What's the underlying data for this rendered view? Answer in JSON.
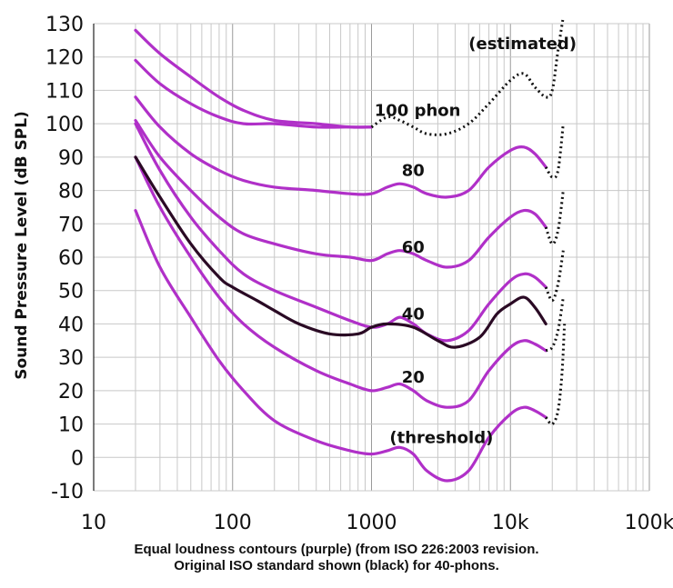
{
  "chart_data": {
    "type": "line",
    "x_scale": "log",
    "xlim": [
      10,
      100000
    ],
    "ylim": [
      -10,
      130
    ],
    "ylabel": "Sound Pressure Level (dB SPL)",
    "x_ticks": [
      10,
      100,
      1000,
      10000,
      100000
    ],
    "x_tick_labels": [
      "10",
      "100",
      "1000",
      "10k",
      "100k"
    ],
    "y_ticks": [
      -10,
      0,
      10,
      20,
      30,
      40,
      50,
      60,
      70,
      80,
      90,
      100,
      110,
      120,
      130
    ],
    "y_tick_labels": [
      "-10",
      "0",
      "10",
      "20",
      "30",
      "40",
      "50",
      "60",
      "70",
      "80",
      "90",
      "100",
      "110",
      "120",
      "130"
    ],
    "grid": true,
    "colors": {
      "purple": "#b030c8",
      "black": "#2a0a24",
      "dotted": "#111111",
      "grid": "#c8c8c8"
    },
    "series": [
      {
        "style": "purple",
        "x": [
          20,
          30,
          50,
          80,
          120,
          200,
          400,
          700,
          1000,
          1300,
          1600,
          2000,
          2500,
          3500,
          5000,
          7000,
          10000,
          12500,
          15000,
          18000
        ],
        "y": [
          74,
          57,
          42,
          29,
          20,
          11,
          5,
          2,
          1,
          2,
          3,
          1,
          -4,
          -7,
          -4,
          6,
          13,
          15,
          14,
          12
        ]
      },
      {
        "style": "purple",
        "x": [
          20,
          30,
          50,
          80,
          120,
          200,
          400,
          700,
          1000,
          1300,
          1600,
          2000,
          2500,
          3500,
          5000,
          7000,
          10000,
          12500,
          15000,
          18000
        ],
        "y": [
          90,
          75,
          60,
          48,
          40,
          33,
          26,
          22,
          20,
          21,
          22,
          20,
          17,
          15,
          17,
          26,
          33,
          35,
          34,
          32
        ]
      },
      {
        "style": "purple",
        "x": [
          20,
          30,
          50,
          80,
          120,
          200,
          400,
          700,
          1000,
          1300,
          1600,
          2000,
          2500,
          3500,
          5000,
          7000,
          10000,
          12500,
          15000,
          18000
        ],
        "y": [
          100,
          86,
          72,
          62,
          55,
          50,
          45,
          41,
          39,
          40,
          42,
          40,
          37,
          35,
          38,
          46,
          53,
          55,
          54,
          51
        ]
      },
      {
        "style": "purple",
        "x": [
          20,
          30,
          50,
          80,
          120,
          200,
          400,
          700,
          1000,
          1300,
          1600,
          2000,
          2500,
          3500,
          5000,
          7000,
          10000,
          12500,
          15000,
          18000
        ],
        "y": [
          101,
          90,
          80,
          72,
          67,
          64,
          61,
          60,
          59,
          61,
          62,
          61,
          59,
          57,
          59,
          66,
          72,
          74,
          73,
          69
        ]
      },
      {
        "style": "purple",
        "x": [
          20,
          30,
          50,
          80,
          120,
          200,
          400,
          700,
          1000,
          1300,
          1600,
          2000,
          2500,
          3500,
          5000,
          7000,
          10000,
          12500,
          15000,
          18000
        ],
        "y": [
          108,
          99,
          91,
          86,
          83,
          81,
          80,
          79,
          79,
          81,
          82,
          81,
          79,
          78,
          80,
          87,
          92,
          93,
          91,
          87
        ]
      },
      {
        "style": "purple",
        "x": [
          20,
          30,
          50,
          80,
          120,
          200,
          400,
          700,
          1000
        ],
        "y": [
          119,
          112,
          106,
          102,
          100,
          100,
          99,
          99,
          99
        ]
      },
      {
        "style": "purple",
        "x": [
          20,
          30,
          50,
          80,
          120,
          200,
          400,
          700,
          1000
        ],
        "y": [
          128,
          121,
          114,
          108,
          104,
          101,
          100,
          99,
          99
        ]
      },
      {
        "style": "black",
        "x": [
          20,
          30,
          50,
          80,
          100,
          150,
          200,
          300,
          500,
          800,
          1000,
          1300,
          2000,
          3000,
          4000,
          6000,
          8000,
          10000,
          12500,
          15000,
          18000
        ],
        "y": [
          90,
          78,
          64,
          54,
          51,
          47,
          44,
          40,
          37,
          37,
          39,
          40,
          39,
          35,
          33,
          36,
          43,
          46,
          48,
          45,
          40
        ]
      },
      {
        "style": "dotted",
        "x": [
          1000,
          1300,
          1600,
          2000,
          2500,
          3500,
          5000,
          7000,
          10000,
          12500,
          15000,
          18000,
          20000,
          22000,
          24000
        ],
        "y": [
          99,
          102,
          101,
          99,
          97,
          97,
          100,
          106,
          113,
          115,
          111,
          108,
          110,
          122,
          132
        ]
      },
      {
        "style": "dotted",
        "x": [
          18000,
          20000,
          22000,
          24000
        ],
        "y": [
          87,
          84,
          86,
          100
        ]
      },
      {
        "style": "dotted",
        "x": [
          18000,
          20000,
          22000,
          24000
        ],
        "y": [
          69,
          64,
          68,
          80
        ]
      },
      {
        "style": "dotted",
        "x": [
          18000,
          20000,
          22000,
          24000
        ],
        "y": [
          51,
          47,
          52,
          62
        ]
      },
      {
        "style": "dotted",
        "x": [
          18000,
          20000,
          22000,
          24000
        ],
        "y": [
          32,
          33,
          38,
          48
        ]
      },
      {
        "style": "dotted",
        "x": [
          18000,
          20000,
          22000,
          23500,
          24500
        ],
        "y": [
          12,
          10,
          14,
          25,
          40
        ]
      }
    ],
    "annotations": [
      {
        "text": "(estimated)",
        "x": 5000,
        "y": 124
      },
      {
        "text": "100 phon",
        "x": 1050,
        "y": 104
      },
      {
        "text": "80",
        "x": 1650,
        "y": 86
      },
      {
        "text": "60",
        "x": 1650,
        "y": 63
      },
      {
        "text": "40",
        "x": 1650,
        "y": 43
      },
      {
        "text": "20",
        "x": 1650,
        "y": 24
      },
      {
        "text": "(threshold)",
        "x": 1350,
        "y": 6
      }
    ],
    "caption_lines": [
      "Equal loudness contours (purple) (from ISO 226:2003 revision.",
      "Original ISO standard shown (black) for 40-phons."
    ]
  }
}
